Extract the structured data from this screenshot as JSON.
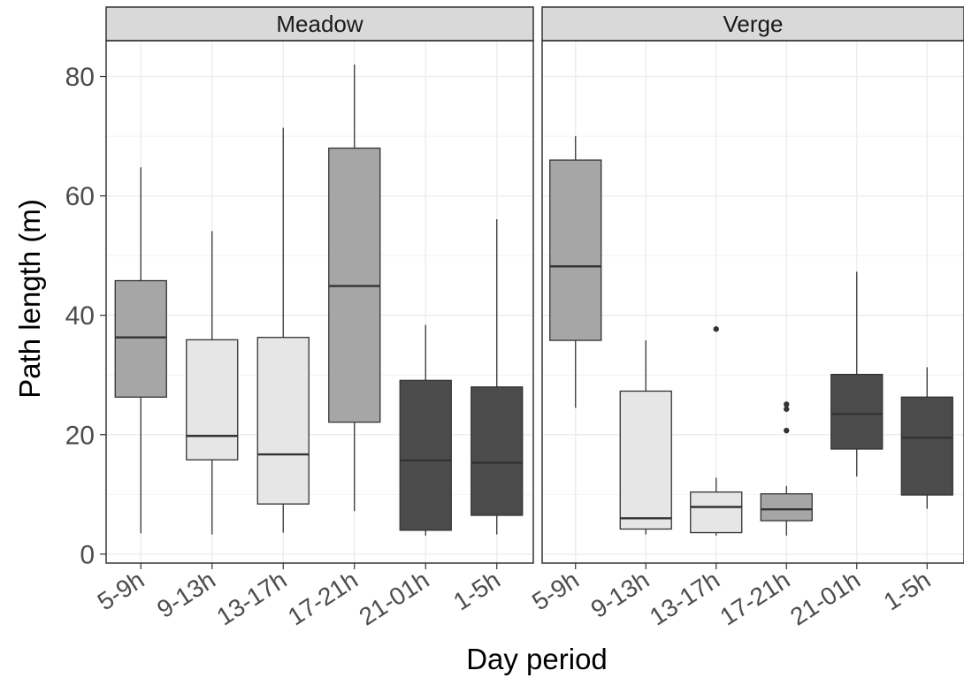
{
  "chart_data": {
    "type": "boxplot",
    "xlabel": "Day period",
    "ylabel": "Path length (m)",
    "ylim": [
      -1.5,
      86
    ],
    "yticks": [
      0,
      20,
      40,
      60,
      80
    ],
    "grid": true,
    "categories": [
      "5-9h",
      "9-13h",
      "13-17h",
      "17-21h",
      "21-01h",
      "1-5h"
    ],
    "fill_colors": [
      "#a6a6a6",
      "#e6e6e6",
      "#e6e6e6",
      "#a6a6a6",
      "#4b4b4b",
      "#4b4b4b"
    ],
    "facets": [
      {
        "title": "Meadow",
        "boxes": [
          {
            "category": "5-9h",
            "min": 3.5,
            "q1": 26.3,
            "median": 36.3,
            "q3": 45.8,
            "max": 64.8,
            "outliers": []
          },
          {
            "category": "9-13h",
            "min": 3.3,
            "q1": 15.8,
            "median": 19.8,
            "q3": 35.9,
            "max": 54.1,
            "outliers": []
          },
          {
            "category": "13-17h",
            "min": 3.6,
            "q1": 8.4,
            "median": 16.7,
            "q3": 36.3,
            "max": 71.4,
            "outliers": []
          },
          {
            "category": "17-21h",
            "min": 7.2,
            "q1": 22.1,
            "median": 44.9,
            "q3": 68.0,
            "max": 82.0,
            "outliers": []
          },
          {
            "category": "21-01h",
            "min": 3.1,
            "q1": 4.0,
            "median": 15.7,
            "q3": 29.1,
            "max": 38.4,
            "outliers": []
          },
          {
            "category": "1-5h",
            "min": 3.3,
            "q1": 6.5,
            "median": 15.3,
            "q3": 28.0,
            "max": 56.1,
            "outliers": []
          }
        ]
      },
      {
        "title": "Verge",
        "boxes": [
          {
            "category": "5-9h",
            "min": 24.5,
            "q1": 35.8,
            "median": 48.2,
            "q3": 66.0,
            "max": 70.0,
            "outliers": []
          },
          {
            "category": "9-13h",
            "min": 3.3,
            "q1": 4.2,
            "median": 6.0,
            "q3": 27.3,
            "max": 35.8,
            "outliers": []
          },
          {
            "category": "13-17h",
            "min": 3.1,
            "q1": 3.6,
            "median": 7.9,
            "q3": 10.4,
            "max": 12.8,
            "outliers": [
              37.7
            ]
          },
          {
            "category": "17-21h",
            "min": 3.1,
            "q1": 5.6,
            "median": 7.5,
            "q3": 10.1,
            "max": 11.4,
            "outliers": [
              20.7,
              24.3,
              25.1
            ]
          },
          {
            "category": "21-01h",
            "min": 13.0,
            "q1": 17.6,
            "median": 23.5,
            "q3": 30.1,
            "max": 47.3,
            "outliers": []
          },
          {
            "category": "1-5h",
            "min": 7.6,
            "q1": 9.9,
            "median": 19.5,
            "q3": 26.3,
            "max": 31.3,
            "outliers": []
          }
        ]
      }
    ]
  }
}
